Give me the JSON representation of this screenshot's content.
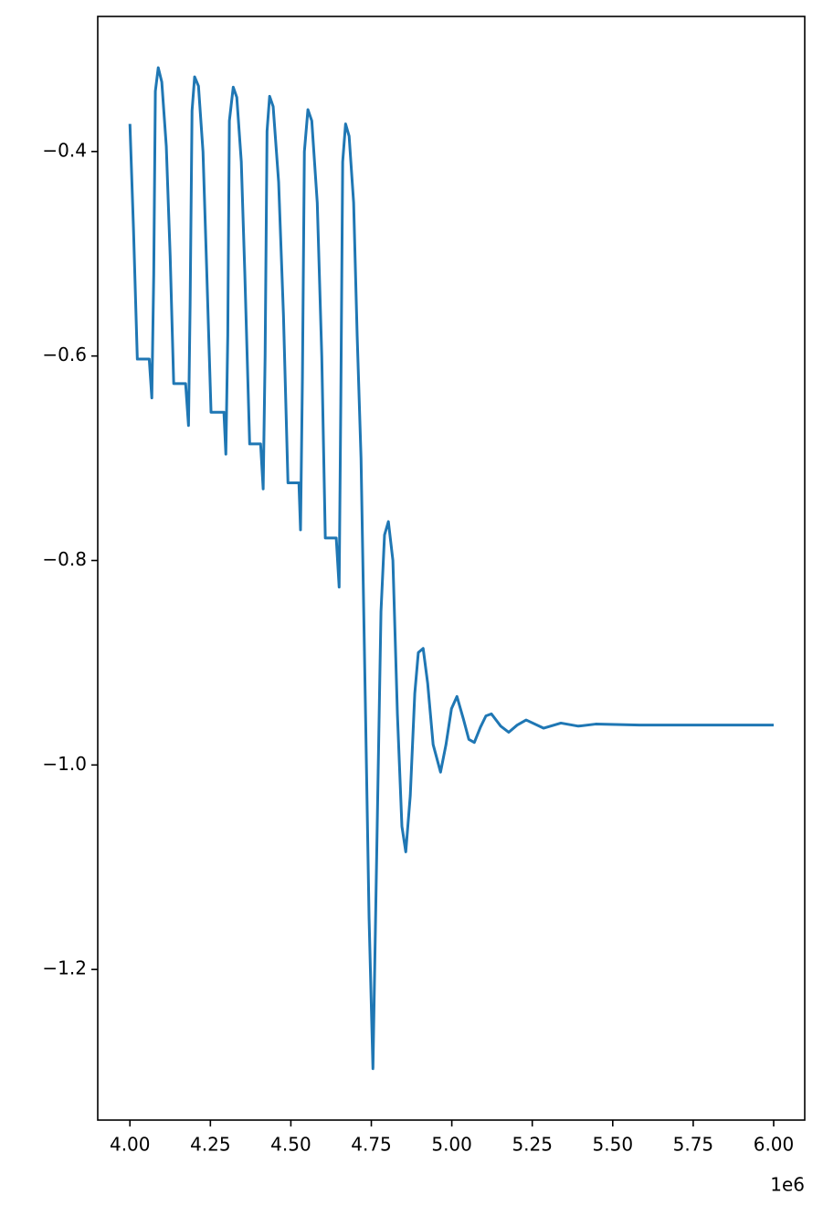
{
  "chart_data": {
    "type": "line",
    "color": "#1f77b4",
    "x_offset_label": "1e6",
    "x": [
      4.0,
      4.011,
      4.023,
      4.06,
      4.068,
      4.074,
      4.079,
      4.088,
      4.099,
      4.113,
      4.125,
      4.136,
      4.173,
      4.182,
      4.187,
      4.193,
      4.201,
      4.213,
      4.227,
      4.238,
      4.252,
      4.292,
      4.298,
      4.304,
      4.309,
      4.321,
      4.332,
      4.346,
      4.357,
      4.372,
      4.406,
      4.414,
      4.42,
      4.426,
      4.434,
      4.445,
      4.462,
      4.477,
      4.491,
      4.525,
      4.53,
      4.536,
      4.542,
      4.553,
      4.565,
      4.582,
      4.596,
      4.607,
      4.641,
      4.65,
      4.655,
      4.661,
      4.67,
      4.681,
      4.695,
      4.706,
      4.718,
      4.732,
      4.743,
      4.755,
      4.766,
      4.78,
      4.791,
      4.803,
      4.817,
      4.831,
      4.845,
      4.857,
      4.871,
      4.885,
      4.896,
      4.911,
      4.925,
      4.942,
      4.965,
      4.982,
      4.999,
      5.016,
      5.036,
      5.053,
      5.07,
      5.089,
      5.106,
      5.123,
      5.152,
      5.177,
      5.203,
      5.231,
      5.285,
      5.339,
      5.393,
      5.447,
      5.583,
      6.0
    ],
    "values": [
      -0.373,
      -0.475,
      -0.603,
      -0.603,
      -0.641,
      -0.52,
      -0.341,
      -0.318,
      -0.332,
      -0.395,
      -0.502,
      -0.627,
      -0.627,
      -0.668,
      -0.55,
      -0.36,
      -0.327,
      -0.336,
      -0.4,
      -0.51,
      -0.655,
      -0.655,
      -0.696,
      -0.58,
      -0.37,
      -0.337,
      -0.347,
      -0.41,
      -0.52,
      -0.686,
      -0.686,
      -0.73,
      -0.6,
      -0.38,
      -0.346,
      -0.356,
      -0.43,
      -0.56,
      -0.724,
      -0.724,
      -0.77,
      -0.62,
      -0.4,
      -0.359,
      -0.37,
      -0.45,
      -0.6,
      -0.778,
      -0.778,
      -0.826,
      -0.65,
      -0.41,
      -0.373,
      -0.385,
      -0.45,
      -0.58,
      -0.7,
      -0.95,
      -1.15,
      -1.297,
      -1.1,
      -0.85,
      -0.775,
      -0.762,
      -0.8,
      -0.95,
      -1.06,
      -1.085,
      -1.03,
      -0.93,
      -0.89,
      -0.886,
      -0.92,
      -0.98,
      -1.007,
      -0.98,
      -0.945,
      -0.933,
      -0.955,
      -0.975,
      -0.978,
      -0.963,
      -0.952,
      -0.95,
      -0.962,
      -0.968,
      -0.961,
      -0.956,
      -0.964,
      -0.959,
      -0.962,
      -0.96,
      -0.961,
      -0.961
    ],
    "xlim": [
      3.9,
      6.0965
    ],
    "ylim": [
      -1.3473,
      -0.2679
    ],
    "xticks": [
      {
        "value": 4,
        "label": "4.00"
      },
      {
        "value": 4.25,
        "label": "4.25"
      },
      {
        "value": 4.5,
        "label": "4.50"
      },
      {
        "value": 4.75,
        "label": "4.75"
      },
      {
        "value": 5,
        "label": "5.00"
      },
      {
        "value": 5.25,
        "label": "5.25"
      },
      {
        "value": 5.5,
        "label": "5.50"
      },
      {
        "value": 5.75,
        "label": "5.75"
      },
      {
        "value": 6,
        "label": "6.00"
      }
    ],
    "yticks": [
      {
        "value": -1.2,
        "label": "−1.2"
      },
      {
        "value": -1.0,
        "label": "−1.0"
      },
      {
        "value": -0.8,
        "label": "−0.8"
      },
      {
        "value": -0.6,
        "label": "−0.6"
      },
      {
        "value": -0.4,
        "label": "−0.4"
      }
    ]
  }
}
